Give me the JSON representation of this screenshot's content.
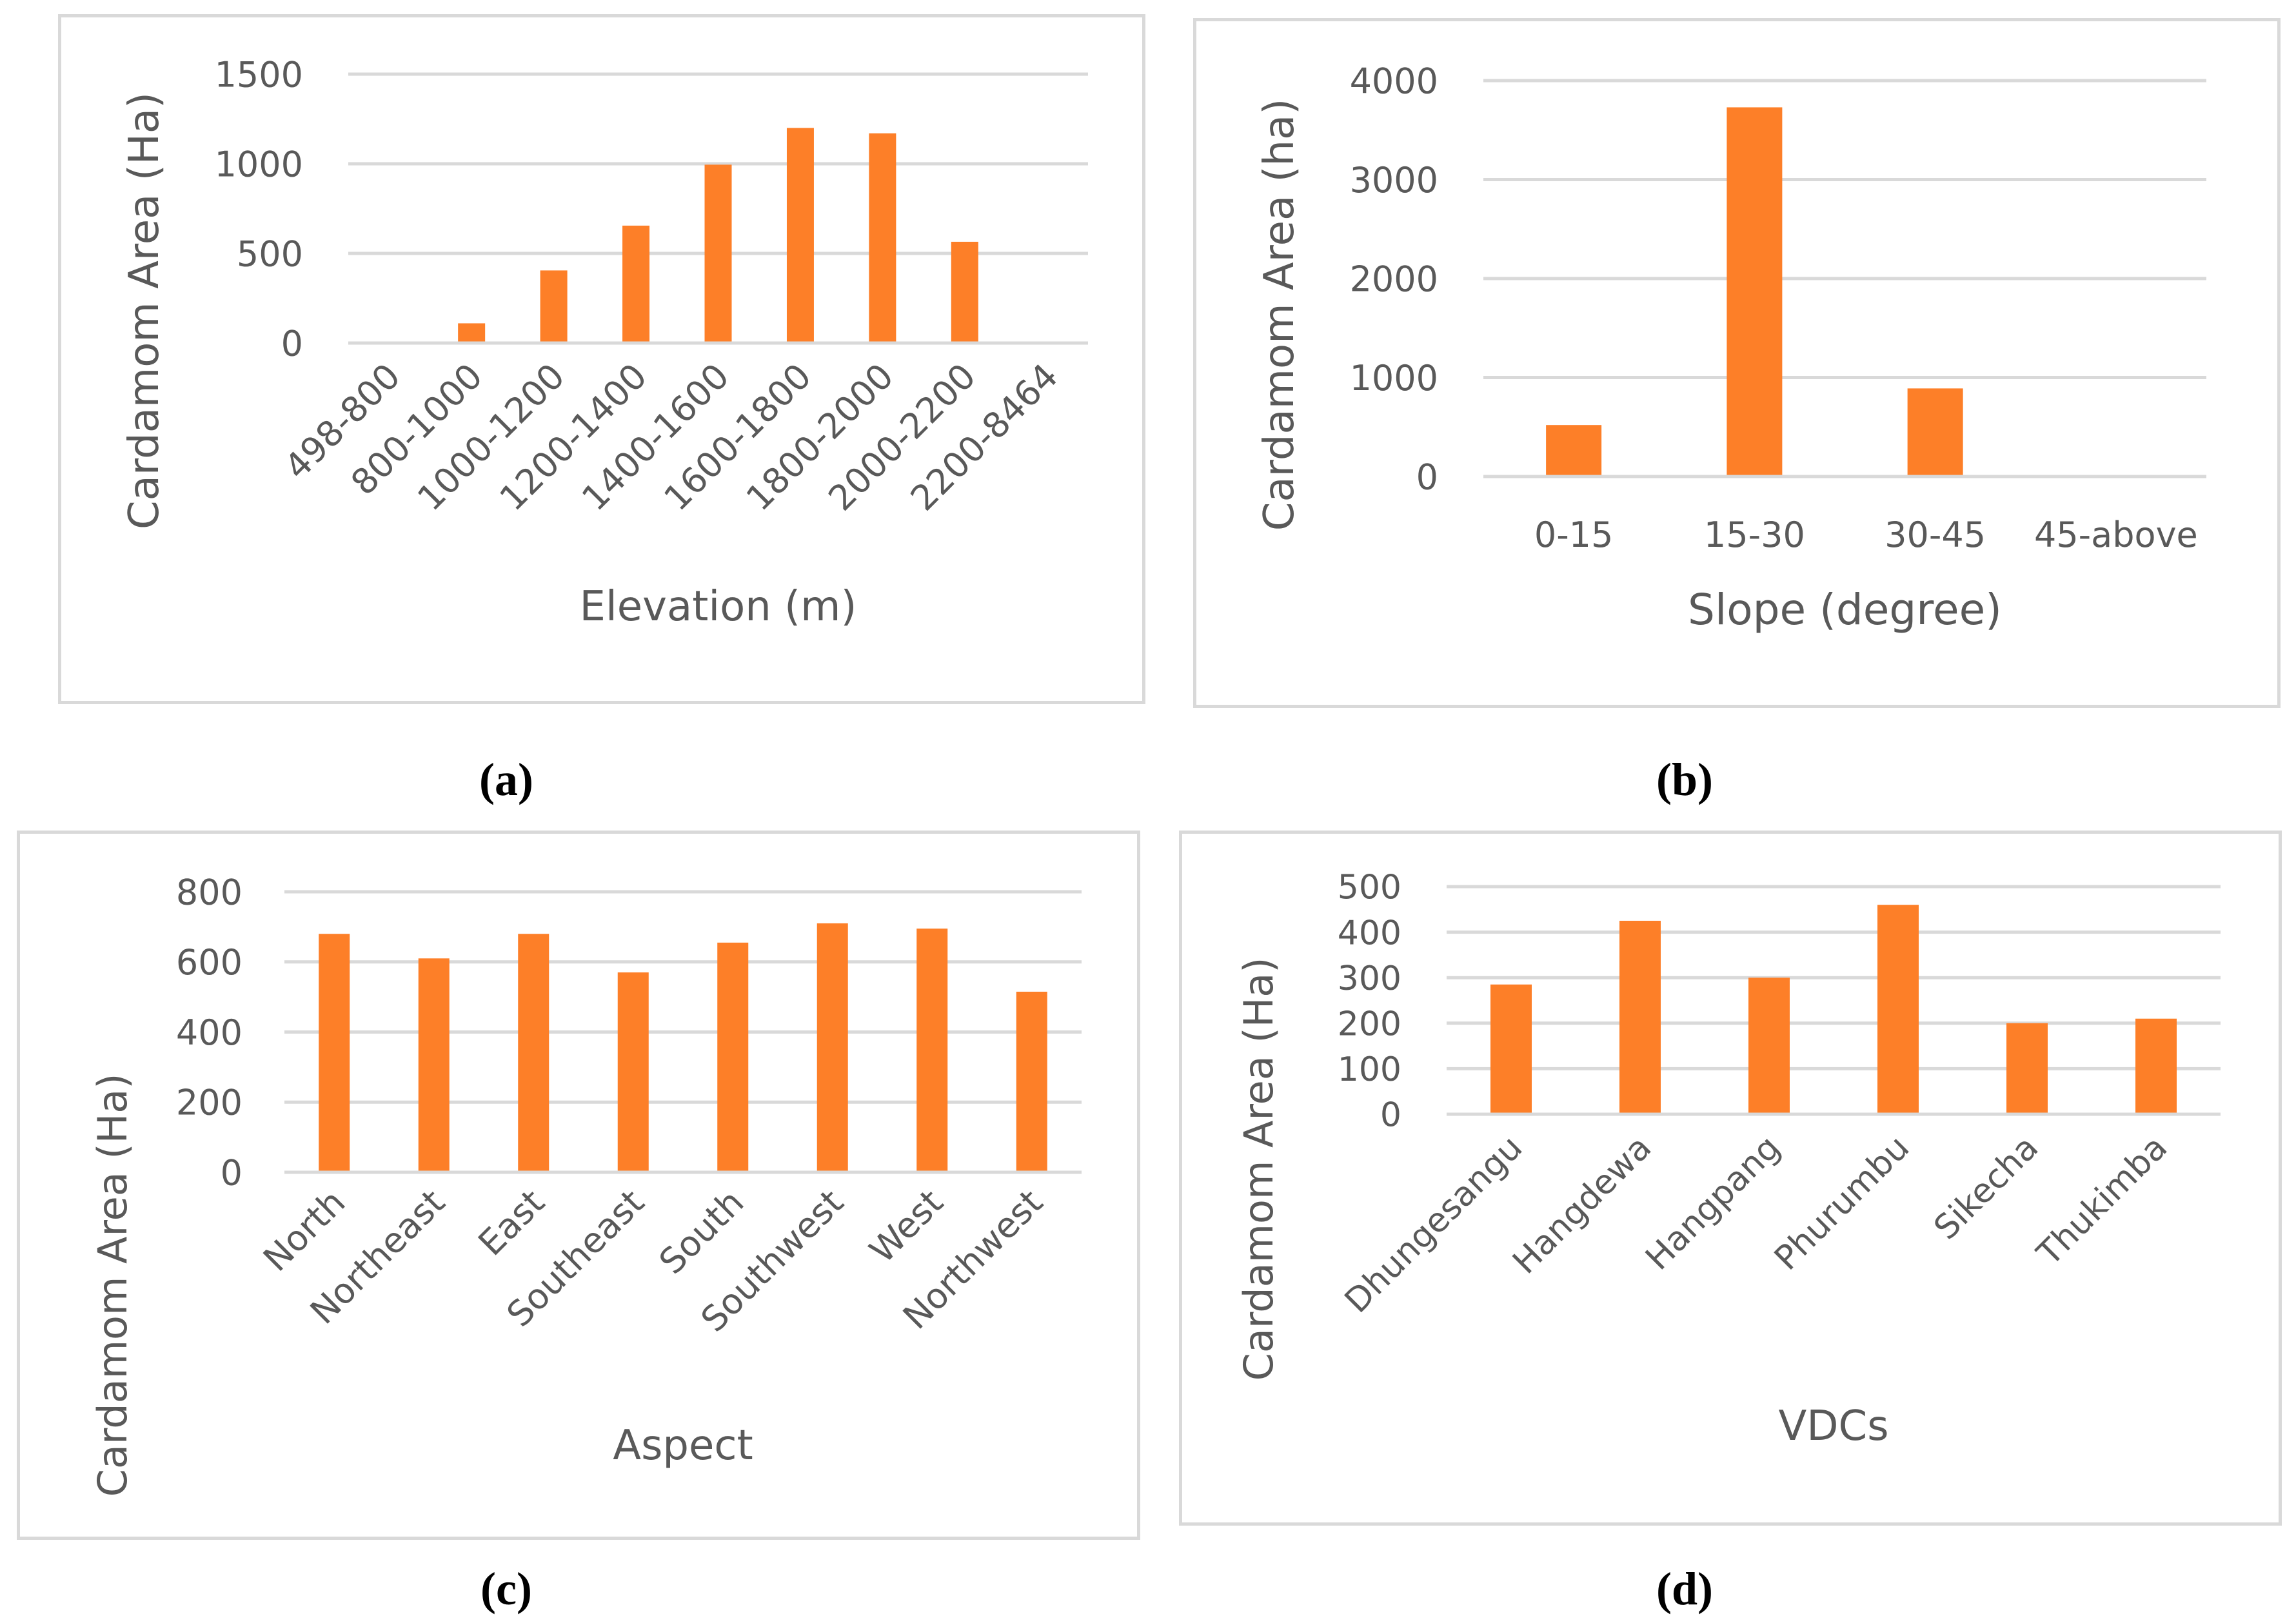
{
  "style": {
    "bar_color": "#fd7f28",
    "grid_color": "#d9d9d9",
    "text_color": "#595959"
  },
  "chart_data": [
    {
      "id": "a",
      "type": "bar",
      "panel_label": "(a)",
      "xlabel": "Elevation (m)",
      "ylabel": "Cardamom Area (Ha)",
      "categories": [
        "498-800",
        "800-1000",
        "1000-1200",
        "1200-1400",
        "1400-1600",
        "1600-1800",
        "1800-2000",
        "2000-2200",
        "2200-8464"
      ],
      "values": [
        0,
        110,
        405,
        655,
        995,
        1200,
        1170,
        565,
        0
      ],
      "yticks": [
        0,
        500,
        1000,
        1500
      ],
      "ylim": [
        0,
        1500
      ],
      "grid": true
    },
    {
      "id": "b",
      "type": "bar",
      "panel_label": "(b)",
      "xlabel": "Slope (degree)",
      "ylabel": "Cardamom Area (ha)",
      "categories": [
        "0-15",
        "15-30",
        "30-45",
        "45-above"
      ],
      "values": [
        520,
        3730,
        890,
        0
      ],
      "yticks": [
        0,
        1000,
        2000,
        3000,
        4000
      ],
      "ylim": [
        0,
        4000
      ],
      "grid": true
    },
    {
      "id": "c",
      "type": "bar",
      "panel_label": "(c)",
      "xlabel": "Aspect",
      "ylabel": "Cardamom Area (Ha)",
      "categories": [
        "North",
        "Northeast",
        "East",
        "Southeast",
        "South",
        "Southwest",
        "West",
        "Northwest"
      ],
      "values": [
        680,
        610,
        680,
        570,
        655,
        710,
        695,
        515
      ],
      "yticks": [
        0,
        200,
        400,
        600,
        800
      ],
      "ylim": [
        0,
        800
      ],
      "grid": true
    },
    {
      "id": "d",
      "type": "bar",
      "panel_label": "(d)",
      "xlabel": "VDCs",
      "ylabel": "Cardamom Area (Ha)",
      "categories": [
        "Dhungesangu",
        "Hangdewa",
        "Hangpang",
        "Phurumbu",
        "Sikecha",
        "Thukimba"
      ],
      "values": [
        285,
        425,
        300,
        460,
        200,
        210
      ],
      "yticks": [
        0,
        100,
        200,
        300,
        400,
        500
      ],
      "ylim": [
        0,
        500
      ],
      "grid": true
    }
  ]
}
